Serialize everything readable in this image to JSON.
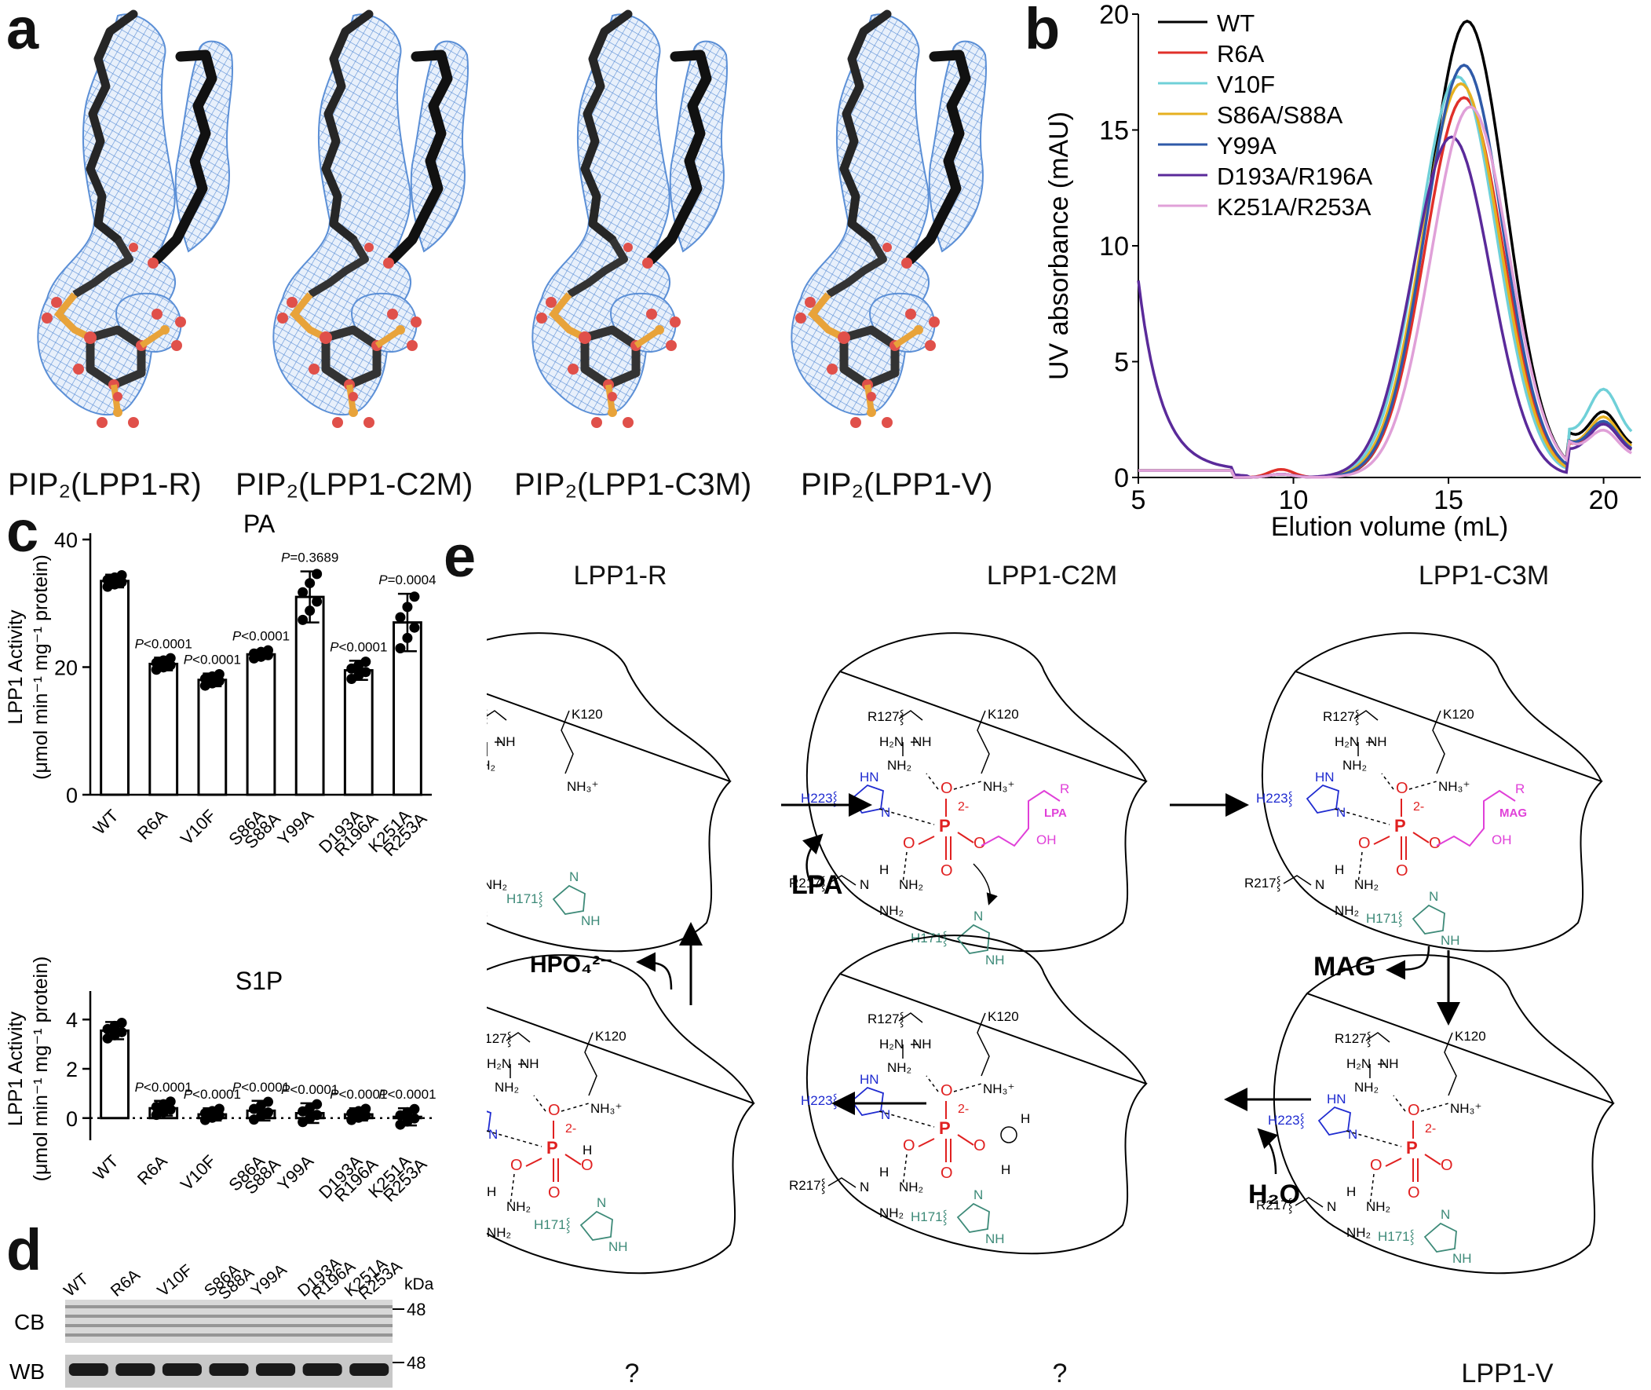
{
  "panel_labels": {
    "a": "a",
    "b": "b",
    "c": "c",
    "d": "d",
    "e": "e"
  },
  "panel_a": {
    "captions": [
      "PIP₂(LPP1-R)",
      "PIP₂(LPP1-C2M)",
      "PIP₂(LPP1-C3M)",
      "PIP₂(LPP1-V)"
    ],
    "colors": {
      "mesh": "#5b8fd6",
      "carbon": "#222222",
      "oxygen": "#e0504a",
      "phosphorus": "#e8a33a"
    }
  },
  "chart_data": [
    {
      "id": "b",
      "type": "line",
      "xlabel": "Elution volume (mL)",
      "ylabel": "UV absorbance (mAU)",
      "xlim": [
        5,
        21.2
      ],
      "ylim": [
        0,
        20
      ],
      "xticks": [
        "5",
        "10",
        "15",
        "20"
      ],
      "yticks": [
        "0",
        "5",
        "10",
        "15",
        "20"
      ],
      "legend_position": "top-left",
      "series": [
        {
          "name": "WT",
          "color": "#000000",
          "peak_x": 15.6,
          "peak_y": 19.7,
          "tail": 2.8
        },
        {
          "name": "R6A",
          "color": "#e0302a",
          "peak_x": 15.5,
          "peak_y": 16.4,
          "tail": 2.3
        },
        {
          "name": "V10F",
          "color": "#6fd0d8",
          "peak_x": 15.3,
          "peak_y": 17.3,
          "tail": 3.8
        },
        {
          "name": "S86A/S88A",
          "color": "#e6b020",
          "peak_x": 15.4,
          "peak_y": 17.0,
          "tail": 2.6
        },
        {
          "name": "Y99A",
          "color": "#2f5aa8",
          "peak_x": 15.5,
          "peak_y": 17.8,
          "tail": 2.4
        },
        {
          "name": "D193A/R196A",
          "color": "#5a2a9a",
          "peak_x": 15.1,
          "peak_y": 14.7,
          "tail": 2.3
        },
        {
          "name": "K251A/R253A",
          "color": "#e0a0d8",
          "peak_x": 15.7,
          "peak_y": 16.0,
          "tail": 2.0
        }
      ]
    },
    {
      "id": "c-PA",
      "type": "bar",
      "title": "PA",
      "ylabel": "LPP1 Activity",
      "ylabel2": "(μmol min⁻¹ mg⁻¹ protein)",
      "ylim": [
        0,
        40
      ],
      "yticks": [
        "0",
        "20",
        "40"
      ],
      "categories": [
        "WT",
        "R6A",
        "V10F",
        "S86A S88A",
        "Y99A",
        "D193A R196A",
        "K251A R253A"
      ],
      "values": [
        33.5,
        20.5,
        18.0,
        22.0,
        31.0,
        19.5,
        27.0
      ],
      "errors": [
        1.0,
        1.0,
        1.0,
        0.7,
        4.0,
        1.5,
        4.5
      ],
      "pvalues": [
        "",
        "P<0.0001",
        "P<0.0001",
        "P<0.0001",
        "P=0.3689",
        "P<0.0001",
        "P=0.0004"
      ]
    },
    {
      "id": "c-S1P",
      "type": "bar",
      "title": "S1P",
      "ylabel": "LPP1 Activity",
      "ylabel2": "(μmol min⁻¹ mg⁻¹ protein)",
      "ylim": [
        -0.9,
        4.9
      ],
      "yticks": [
        "0",
        "2",
        "4"
      ],
      "categories": [
        "WT",
        "R6A",
        "V10F",
        "S86A S88A",
        "Y99A",
        "D193A R196A",
        "K251A R253A"
      ],
      "values": [
        3.55,
        0.4,
        0.15,
        0.3,
        0.2,
        0.15,
        0.05
      ],
      "errors": [
        0.35,
        0.3,
        0.25,
        0.4,
        0.4,
        0.25,
        0.35
      ],
      "pvalues": [
        "",
        "P<0.0001",
        "P<0.0001",
        "P<0.0001",
        "P<0.0001",
        "P<0.0001",
        "P<0.0001"
      ]
    }
  ],
  "panel_d": {
    "lanes": [
      "WT",
      "R6A",
      "V10F",
      "S86A S88A",
      "Y99A",
      "D193A R196A",
      "K251A R253A"
    ],
    "rows": [
      "CB",
      "WB"
    ],
    "unit": "kDa",
    "marker": "48"
  },
  "panel_e": {
    "states": {
      "r": {
        "title": "LPP1-R",
        "bottom": ""
      },
      "c2m": {
        "title": "LPP1-C2M",
        "bottom": ""
      },
      "c3m": {
        "title": "LPP1-C3M",
        "bottom": ""
      },
      "v": {
        "title": "",
        "bottom": "LPP1-V"
      },
      "q2": {
        "title": "",
        "bottom": "?"
      },
      "q1": {
        "title": "",
        "bottom": "?"
      }
    },
    "arrow_labels": {
      "lpa": "LPA",
      "mag": "MAG",
      "water": "H₂O",
      "phosphate": "HPO₄²⁻"
    },
    "residues": {
      "r127": "R127",
      "k120": "K120",
      "h223": "H223",
      "r217": "R217",
      "h171": "H171"
    },
    "ligands": {
      "lpa": "LPA",
      "mag": "MAG",
      "oh": "OH",
      "r": "R"
    },
    "colors": {
      "his223": "#1f2bd0",
      "his171": "#3d8a78",
      "ligand": "#e040d8",
      "phosphate": "#e02020"
    }
  }
}
